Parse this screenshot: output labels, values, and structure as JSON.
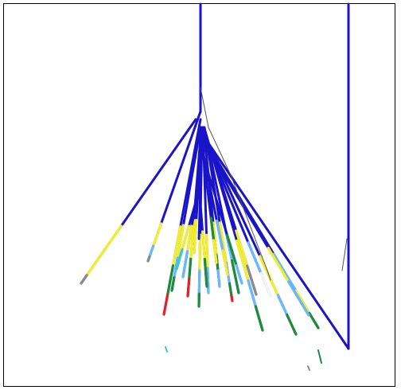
{
  "scene": {
    "background": "#ffffff",
    "border": "#000000",
    "trace_color": "#1a14c8",
    "thin_trace_color": "#555555",
    "interval_colors": {
      "yellow": "#f2ee2a",
      "blue": "#2a3fd0",
      "light_blue": "#66b8ff",
      "green": "#1e8c3a",
      "red": "#e02424",
      "gray": "#8a8a8a",
      "cyan": "#3cc9c9",
      "white": "#f4f4f4"
    }
  }
}
